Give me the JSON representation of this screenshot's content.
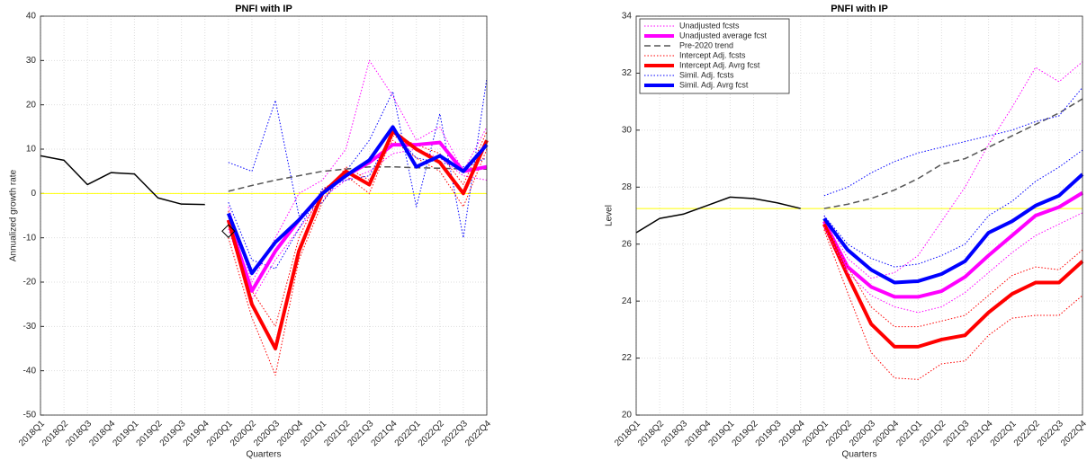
{
  "chart_data": [
    {
      "type": "line",
      "title": "PNFI with IP",
      "xlabel": "Quarters",
      "ylabel": "Annualized growth rate",
      "categories": [
        "2018Q1",
        "2018Q2",
        "2018Q3",
        "2018Q4",
        "2019Q1",
        "2019Q2",
        "2019Q3",
        "2019Q4",
        "2020Q1",
        "2020Q2",
        "2020Q3",
        "2020Q4",
        "2021Q1",
        "2021Q2",
        "2021Q3",
        "2021Q4",
        "2022Q1",
        "2022Q2",
        "2022Q3",
        "2022Q4"
      ],
      "ylim": [
        -50,
        40
      ],
      "yticks": [
        -50,
        -40,
        -30,
        -20,
        -10,
        0,
        10,
        20,
        30,
        40
      ],
      "grid": true,
      "hline": {
        "value": 0,
        "color": "#ffff00"
      },
      "series": [
        {
          "color": "#ff00ff",
          "dash": "dotted",
          "width": 1,
          "values": [
            null,
            null,
            null,
            null,
            null,
            null,
            null,
            null,
            -3,
            -20,
            -10,
            0,
            3,
            10,
            30,
            22,
            12,
            15,
            5,
            15
          ]
        },
        {
          "color": "#ff00ff",
          "dash": "dotted",
          "width": 1,
          "values": [
            null,
            null,
            null,
            null,
            null,
            null,
            null,
            null,
            -8,
            -24,
            -15,
            -8,
            -1,
            3,
            5,
            9,
            10,
            8,
            4,
            3
          ]
        },
        {
          "color": "#ff0000",
          "dash": "dotted",
          "width": 1,
          "values": [
            null,
            null,
            null,
            null,
            null,
            null,
            null,
            null,
            -10,
            -28,
            -41,
            -15,
            -2,
            6,
            3,
            12,
            8,
            5,
            -3,
            10
          ]
        },
        {
          "color": "#ff0000",
          "dash": "dotted",
          "width": 1,
          "values": [
            null,
            null,
            null,
            null,
            null,
            null,
            null,
            null,
            -4,
            -22,
            -30,
            -10,
            1,
            4,
            0,
            13,
            11,
            9,
            2,
            14
          ]
        },
        {
          "color": "#0000ff",
          "dash": "dotted",
          "width": 1,
          "values": [
            null,
            null,
            null,
            null,
            null,
            null,
            null,
            null,
            7,
            5,
            21,
            -5,
            -2,
            5,
            12,
            23,
            -3,
            18,
            -10,
            26
          ]
        },
        {
          "color": "#0000ff",
          "dash": "dotted",
          "width": 1,
          "values": [
            null,
            null,
            null,
            null,
            null,
            null,
            null,
            null,
            -2,
            -15,
            -17,
            -8,
            1,
            3,
            4,
            14,
            8,
            7,
            6,
            8
          ]
        },
        {
          "color": "#000000",
          "dash": "solid",
          "width": 1.5,
          "values": [
            8.5,
            7.5,
            2,
            4.7,
            4.4,
            -1,
            -2.4,
            -2.5,
            null,
            null,
            null,
            null,
            null,
            null,
            null,
            null,
            null,
            null,
            null,
            null
          ]
        },
        {
          "color": "#555555",
          "dash": "dashed",
          "width": 1.5,
          "values": [
            null,
            null,
            null,
            null,
            null,
            null,
            null,
            null,
            0.5,
            1.8,
            3,
            4,
            5,
            5.5,
            6,
            6,
            5.8,
            5.7,
            5.5,
            5.5
          ]
        },
        {
          "color": "#ff00ff",
          "dash": "solid",
          "width": 4,
          "values": [
            null,
            null,
            null,
            null,
            null,
            null,
            null,
            null,
            -6,
            -22,
            -13,
            -6,
            0,
            4,
            7,
            11,
            11,
            11.5,
            5,
            6
          ]
        },
        {
          "color": "#ff0000",
          "dash": "solid",
          "width": 4,
          "values": [
            null,
            null,
            null,
            null,
            null,
            null,
            null,
            null,
            -6,
            -25,
            -35,
            -13,
            0,
            5,
            2,
            14,
            10,
            7,
            0,
            12
          ]
        },
        {
          "color": "#0000ff",
          "dash": "solid",
          "width": 4,
          "values": [
            null,
            null,
            null,
            null,
            null,
            null,
            null,
            null,
            -4.5,
            -18,
            -11,
            -6,
            0,
            4,
            7.5,
            15,
            6,
            8.5,
            5,
            11
          ]
        },
        {
          "color": "#000000",
          "marker": "diamond",
          "values": [
            null,
            null,
            null,
            null,
            null,
            null,
            null,
            null,
            -8.5,
            null,
            null,
            null,
            null,
            null,
            null,
            null,
            null,
            null,
            null,
            null
          ]
        }
      ]
    },
    {
      "type": "line",
      "title": "PNFI with IP",
      "xlabel": "Quarters",
      "ylabel": "Level",
      "categories": [
        "2018Q1",
        "2018Q2",
        "2018Q3",
        "2018Q4",
        "2019Q1",
        "2019Q2",
        "2019Q3",
        "2019Q4",
        "2020Q1",
        "2020Q2",
        "2020Q3",
        "2020Q4",
        "2021Q1",
        "2021Q2",
        "2021Q3",
        "2021Q4",
        "2022Q1",
        "2022Q2",
        "2022Q3",
        "2022Q4"
      ],
      "ylim": [
        20,
        34
      ],
      "yticks": [
        20,
        22,
        24,
        26,
        28,
        30,
        32,
        34
      ],
      "grid": true,
      "legend": "upper left",
      "hline": {
        "value": 27.25,
        "color": "#ffff00"
      },
      "series": [
        {
          "name": "Unadjusted fcsts",
          "color": "#ff00ff",
          "dash": "dotted",
          "width": 1,
          "values": [
            null,
            null,
            null,
            null,
            null,
            null,
            null,
            null,
            27,
            25.5,
            24.8,
            25,
            25.6,
            26.8,
            28,
            29.5,
            30.8,
            32.2,
            31.7,
            32.4
          ]
        },
        {
          "name": "Unadjusted average fcst",
          "color": "#ff00ff",
          "dash": "solid",
          "width": 4,
          "values": [
            null,
            null,
            null,
            null,
            null,
            null,
            null,
            null,
            26.8,
            25.2,
            24.5,
            24.15,
            24.15,
            24.35,
            24.85,
            25.6,
            26.3,
            27,
            27.3,
            27.8
          ]
        },
        {
          "name": "Pre-2020 trend",
          "color": "#555555",
          "dash": "dashed",
          "width": 1.5,
          "values": [
            null,
            null,
            null,
            null,
            null,
            null,
            null,
            null,
            27.25,
            27.4,
            27.6,
            27.9,
            28.3,
            28.8,
            29,
            29.4,
            29.8,
            30.2,
            30.6,
            31.1
          ]
        },
        {
          "name": "Intercept Adj. fcsts",
          "color": "#ff0000",
          "dash": "dotted",
          "width": 1,
          "values": [
            null,
            null,
            null,
            null,
            null,
            null,
            null,
            null,
            26.5,
            24.3,
            22.2,
            21.3,
            21.25,
            21.8,
            21.9,
            22.8,
            23.4,
            23.5,
            23.5,
            24.2
          ]
        },
        {
          "name": "Intercept Adj. Avrg fcst",
          "color": "#ff0000",
          "dash": "solid",
          "width": 4,
          "values": [
            null,
            null,
            null,
            null,
            null,
            null,
            null,
            null,
            26.7,
            24.9,
            23.2,
            22.4,
            22.4,
            22.65,
            22.8,
            23.6,
            24.25,
            24.65,
            24.65,
            25.4
          ]
        },
        {
          "name": "Simil. Adj. fcsts",
          "color": "#0000ff",
          "dash": "dotted",
          "width": 1,
          "values": [
            null,
            null,
            null,
            null,
            null,
            null,
            null,
            null,
            27.7,
            28,
            28.5,
            28.9,
            29.2,
            29.4,
            29.6,
            29.8,
            30,
            30.3,
            30.5,
            31.5
          ]
        },
        {
          "name": "Simil. Adj. Avrg fcst",
          "color": "#0000ff",
          "dash": "solid",
          "width": 4,
          "values": [
            null,
            null,
            null,
            null,
            null,
            null,
            null,
            null,
            26.9,
            25.8,
            25.1,
            24.65,
            24.7,
            24.95,
            25.4,
            26.4,
            26.8,
            27.35,
            27.7,
            28.45
          ]
        },
        {
          "color": "#ff00ff",
          "dash": "dotted",
          "width": 1,
          "values": [
            null,
            null,
            null,
            null,
            null,
            null,
            null,
            null,
            26.6,
            25,
            24.2,
            23.8,
            23.6,
            23.8,
            24.3,
            25,
            25.7,
            26.3,
            26.7,
            27.1
          ]
        },
        {
          "color": "#ff0000",
          "dash": "dotted",
          "width": 1,
          "values": [
            null,
            null,
            null,
            null,
            null,
            null,
            null,
            null,
            26.8,
            25.2,
            23.8,
            23.1,
            23.1,
            23.3,
            23.5,
            24.2,
            24.9,
            25.2,
            25.1,
            25.8
          ]
        },
        {
          "color": "#0000ff",
          "dash": "dotted",
          "width": 1,
          "values": [
            null,
            null,
            null,
            null,
            null,
            null,
            null,
            null,
            27,
            26,
            25.5,
            25.2,
            25.3,
            25.6,
            26,
            27,
            27.5,
            28.2,
            28.7,
            29.3
          ]
        },
        {
          "color": "#000000",
          "dash": "solid",
          "width": 1.5,
          "values": [
            26.4,
            26.9,
            27.05,
            27.35,
            27.65,
            27.6,
            27.45,
            27.25,
            null,
            null,
            null,
            null,
            null,
            null,
            null,
            null,
            null,
            null,
            null,
            null
          ]
        }
      ]
    }
  ]
}
